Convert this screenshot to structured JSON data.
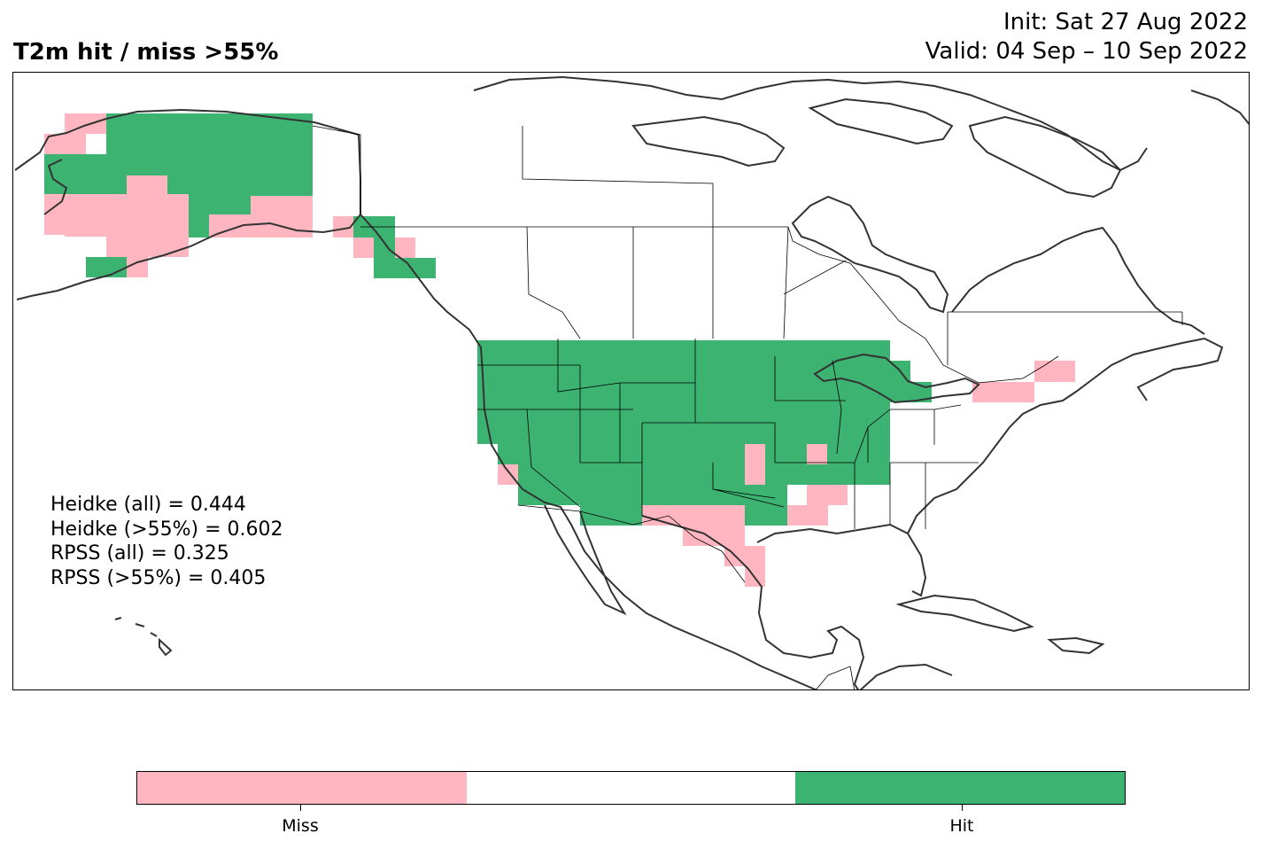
{
  "header": {
    "title": "T2m hit / miss  >55%",
    "init": "Init: Sat 27 Aug 2022",
    "valid": "Valid: 04 Sep – 10 Sep 2022"
  },
  "stats": {
    "heidke_all": "Heidke (all) = 0.444",
    "heidke_55": "Heidke (>55%) = 0.602",
    "rpss_all": "RPSS (all) = 0.325",
    "rpss_55": "RPSS (>55%) = 0.405"
  },
  "legend": {
    "categories": [
      {
        "label": "Miss",
        "color": "#ffb6c1"
      },
      {
        "label": "",
        "color": "#ffffff"
      },
      {
        "label": "Hit",
        "color": "#3cb371"
      }
    ]
  },
  "colors": {
    "hit": "#3cb371",
    "miss": "#ffb6c1",
    "coast": "#333333",
    "border": "#000000"
  }
}
